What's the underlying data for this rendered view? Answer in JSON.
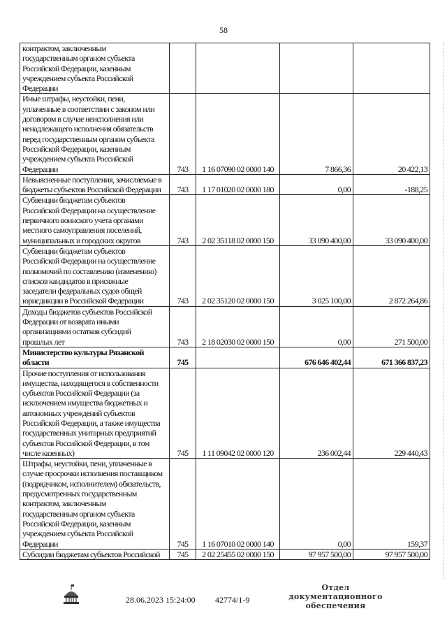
{
  "page_number": "58",
  "table": {
    "rows": [
      {
        "name": "контрактом, заключенным\nгосударственным органом субъекта\nРоссийской Федерации, казенным\nучреждением субъекта Российской\nФедерации",
        "admin": "",
        "code": "",
        "plan": "",
        "actual": "",
        "bold": false
      },
      {
        "name": "Иные штрафы, неустойки, пени,\nуплаченные в соответствии с законом или\nдоговором в случае неисполнения или\nненадлежащего исполнения обязательств\nперед государственным органом субъекта\nРоссийской Федерации, казенным\nучреждением субъекта Российской\nФедерации",
        "admin": "743",
        "code": "1 16 07090 02 0000 140",
        "plan": "7 866,36",
        "actual": "20 422,13",
        "bold": false
      },
      {
        "name": "Невыясненные поступления, зачисляемые в\nбюджеты субъектов Российской Федерации",
        "admin": "743",
        "code": "1 17 01020 02 0000 180",
        "plan": "0,00",
        "actual": "-188,25",
        "bold": false
      },
      {
        "name": "Субвенции бюджетам субъектов\nРоссийской Федерации на осуществление\nпервичного воинского учета органами\nместного самоуправления поселений,\nмуниципальных и городских округов",
        "admin": "743",
        "code": "2 02 35118 02 0000 150",
        "plan": "33 090 400,00",
        "actual": "33 090 400,00",
        "bold": false
      },
      {
        "name": "Субвенции бюджетам субъектов\nРоссийской Федерации на осуществление\nполномочий по составлению (изменению)\nсписков кандидатов в присяжные\nзаседатели федеральных судов общей\nюрисдикции в Российской Федерации",
        "admin": "743",
        "code": "2 02 35120 02 0000 150",
        "plan": "3 025 100,00",
        "actual": "2 872 264,86",
        "bold": false
      },
      {
        "name": "Доходы бюджетов субъектов Российской\nФедерации от возврата иными\nорганизациями остатков субсидий\nпрошлых лет",
        "admin": "743",
        "code": "2 18 02030 02 0000 150",
        "plan": "0,00",
        "actual": "271 500,00",
        "bold": false
      },
      {
        "name": "Министерство культуры Рязанской\nобласти",
        "admin": "745",
        "code": "",
        "plan": "676 646 402,44",
        "actual": "671 366 837,23",
        "bold": true
      },
      {
        "name": "Прочие поступления от использования\nимущества, находящегося в собственности\nсубъектов Российской Федерации (за\nисключением имущества бюджетных и\nавтономных учреждений субъектов\nРоссийской Федерации, а также имущества\nгосударственных унитарных предприятий\nсубъектов Российской Федерации, в том\nчисле казенных)",
        "admin": "745",
        "code": "1 11 09042 02 0000 120",
        "plan": "236 002,44",
        "actual": "229 440,43",
        "bold": false
      },
      {
        "name": "Штрафы, неустойки, пени, уплаченные в\nслучае просрочки исполнения поставщиком\n(подрядчиком, исполнителем) обязательств,\nпредусмотренных государственным\nконтрактом, заключенным\nгосударственным органом субъекта\nРоссийской Федерации, казенным\nучреждением субъекта Российской\nФедерации",
        "admin": "745",
        "code": "1 16 07010 02 0000 140",
        "plan": "0,00",
        "actual": "159,37",
        "bold": false
      },
      {
        "name": "Субсидии бюджетам субъектов Российской",
        "admin": "745",
        "code": "2 02 25455 02 0000 150",
        "plan": "97 957 500,00",
        "actual": "97 957 500,00",
        "bold": false
      }
    ]
  },
  "footer": {
    "logo_icon": "duma-building-logo",
    "datetime": "28.06.2023 15:24:00",
    "doc_number": "42774/1-9",
    "department": "Отдел документационного\nобеспечения"
  }
}
